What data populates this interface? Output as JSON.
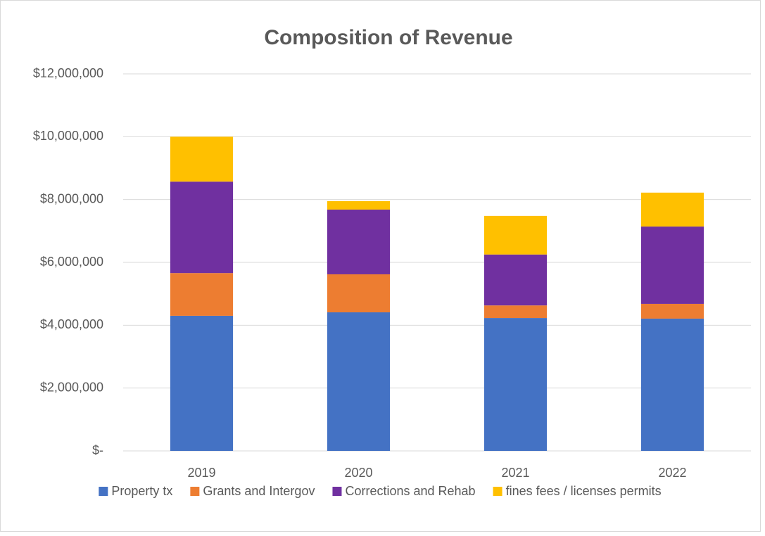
{
  "chart_data": {
    "type": "stacked_bar",
    "title": "Composition of Revenue",
    "categories": [
      "2019",
      "2020",
      "2021",
      "2022"
    ],
    "series": [
      {
        "name": "Property tx",
        "color": "#4472c4",
        "values": [
          4300000,
          4410000,
          4230000,
          4210000
        ]
      },
      {
        "name": "Grants and Intergov",
        "color": "#ed7d31",
        "values": [
          1360000,
          1210000,
          400000,
          470000
        ]
      },
      {
        "name": "Corrections and Rehab",
        "color": "#7030a0",
        "values": [
          2910000,
          2060000,
          1620000,
          2460000
        ]
      },
      {
        "name": "fines fees / licenses permits",
        "color": "#ffc000",
        "values": [
          1430000,
          270000,
          1230000,
          1080000
        ]
      }
    ],
    "ylim": [
      0,
      12000000
    ],
    "yticks": [
      {
        "value": 0,
        "label": "$-"
      },
      {
        "value": 2000000,
        "label": "$2,000,000"
      },
      {
        "value": 4000000,
        "label": "$4,000,000"
      },
      {
        "value": 6000000,
        "label": "$6,000,000"
      },
      {
        "value": 8000000,
        "label": "$8,000,000"
      },
      {
        "value": 10000000,
        "label": "$10,000,000"
      },
      {
        "value": 12000000,
        "label": "$12,000,000"
      }
    ],
    "grid": true,
    "legend": "bottom"
  }
}
